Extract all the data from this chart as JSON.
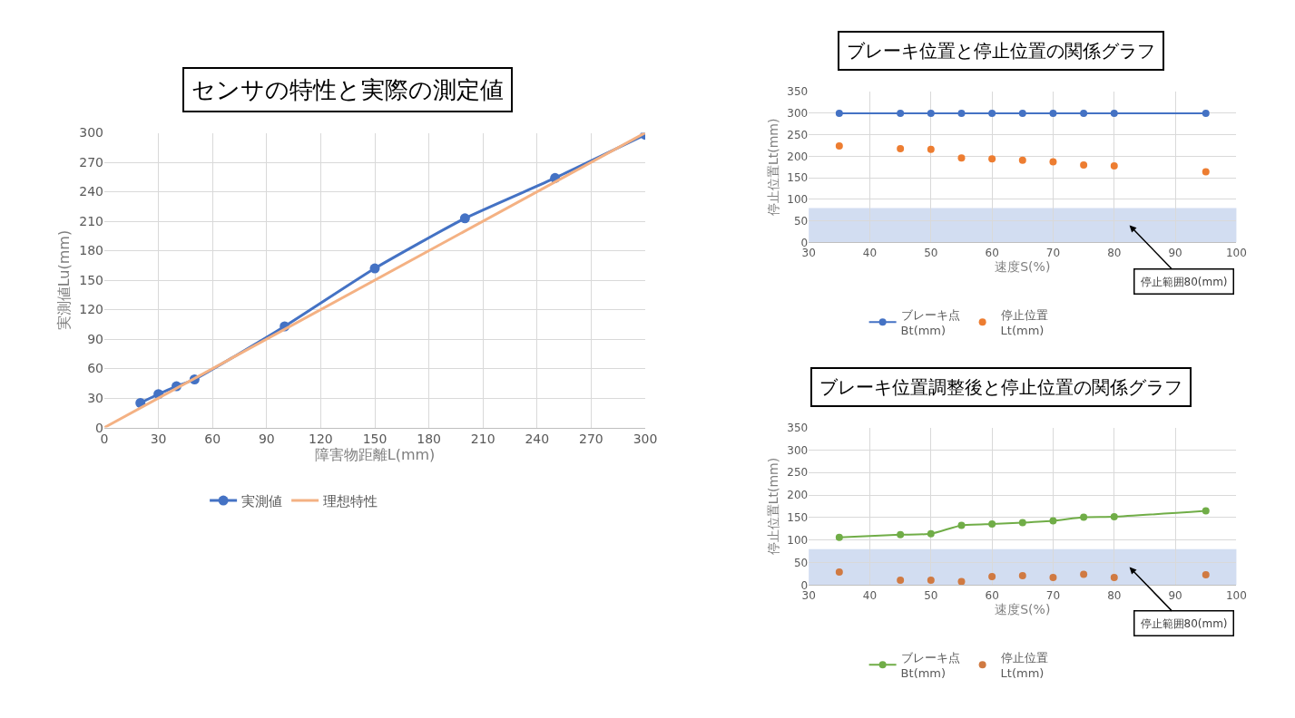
{
  "chart_data": [
    {
      "type": "line",
      "title": "センサの特性と実際の測定値",
      "xlabel": "障害物距離L(mm)",
      "ylabel": "実測値Lu(mm)",
      "xlim": [
        0,
        300
      ],
      "xticks": [
        0,
        30,
        60,
        90,
        120,
        150,
        180,
        210,
        240,
        270,
        300
      ],
      "ylim": [
        0,
        300
      ],
      "yticks": [
        0,
        30,
        60,
        90,
        120,
        150,
        180,
        210,
        240,
        270,
        300
      ],
      "grid": true,
      "legend": "bottom",
      "series": [
        {
          "name": "実測値",
          "color": "#4472c4",
          "marker": "circle",
          "x": [
            20,
            30,
            40,
            50,
            100,
            150,
            200,
            250,
            300
          ],
          "values": [
            25,
            34,
            42,
            49,
            103,
            162,
            213,
            254,
            298
          ]
        },
        {
          "name": "理想特性",
          "color": "#f4b183",
          "marker": "none",
          "x": [
            0,
            300
          ],
          "values": [
            0,
            300
          ]
        }
      ]
    },
    {
      "type": "line",
      "title": "ブレーキ位置と停止位置の関係グラフ",
      "xlabel": "速度S(%)",
      "ylabel": "停止位置Lt(mm)",
      "xlim": [
        30,
        100
      ],
      "xticks": [
        30,
        40,
        50,
        60,
        70,
        80,
        90,
        100
      ],
      "ylim": [
        0,
        350
      ],
      "yticks": [
        0,
        50,
        100,
        150,
        200,
        250,
        300,
        350
      ],
      "grid": true,
      "legend": "bottom",
      "marker": "circle",
      "x": [
        35,
        45,
        50,
        55,
        60,
        65,
        70,
        75,
        80,
        95
      ],
      "series": [
        {
          "name": "ブレーキ点\nBt(mm)",
          "color": "#4472c4",
          "values": [
            300,
            300,
            300,
            300,
            300,
            300,
            300,
            300,
            300,
            300
          ]
        },
        {
          "name": "停止位置\nLt(mm)",
          "color": "#ed7d31",
          "type": "scatter",
          "values": [
            224,
            218,
            216,
            196,
            194,
            191,
            187,
            180,
            178,
            164
          ]
        }
      ],
      "bands": [
        {
          "axis": "y",
          "from": 0,
          "to": 80,
          "label": "停止範囲80(mm)",
          "color": "#b4c7e7"
        }
      ]
    },
    {
      "type": "line",
      "title": "ブレーキ位置調整後と停止位置の関係グラフ",
      "xlabel": "速度S(%)",
      "ylabel": "停止位置Lt(mm)",
      "xlim": [
        30,
        100
      ],
      "xticks": [
        30,
        40,
        50,
        60,
        70,
        80,
        90,
        100
      ],
      "ylim": [
        0,
        350
      ],
      "yticks": [
        0,
        50,
        100,
        150,
        200,
        250,
        300,
        350
      ],
      "grid": true,
      "legend": "bottom",
      "marker": "circle",
      "x": [
        35,
        45,
        50,
        55,
        60,
        65,
        70,
        75,
        80,
        95
      ],
      "series": [
        {
          "name": "ブレーキ点\nBt(mm)",
          "color": "#70ad47",
          "values": [
            106,
            112,
            114,
            133,
            136,
            139,
            143,
            151,
            152,
            165
          ]
        },
        {
          "name": "停止位置\nLt(mm)",
          "color": "#d07a42",
          "type": "scatter",
          "values": [
            29,
            11,
            11,
            8,
            19,
            21,
            17,
            24,
            17,
            23
          ]
        }
      ],
      "bands": [
        {
          "axis": "y",
          "from": 0,
          "to": 80,
          "label": "停止範囲80(mm)",
          "color": "#b4c7e7"
        }
      ]
    }
  ]
}
